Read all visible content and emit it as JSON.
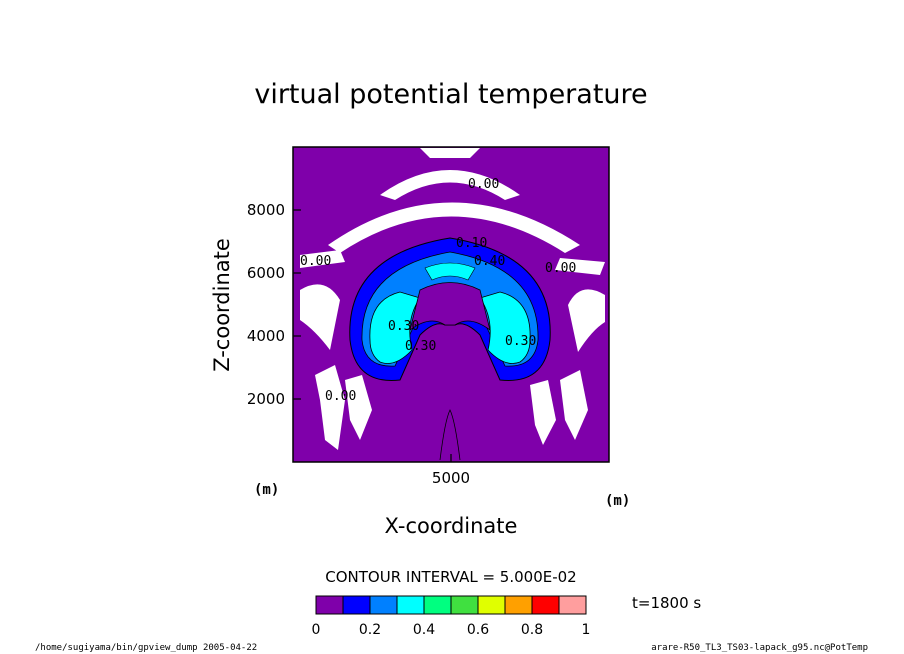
{
  "chart_data": {
    "type": "heatmap",
    "title": "virtual potential temperature",
    "xlabel": "X-coordinate",
    "ylabel": "Z-coordinate",
    "x_unit": "(m)",
    "y_unit": "(m)",
    "x_ticks": [
      5000
    ],
    "y_ticks": [
      2000,
      4000,
      6000,
      8000
    ],
    "xlim": [
      0,
      10000
    ],
    "ylim": [
      0,
      10000
    ],
    "contour_interval": "CONTOUR INTERVAL = 5.000E-02",
    "time_label": "t=1800 s",
    "colorbar": {
      "ticks": [
        "0",
        "0.2",
        "0.4",
        "0.6",
        "0.8",
        "1"
      ],
      "colors": [
        "#7f00aa",
        "#0000ff",
        "#0080ff",
        "#00ffff",
        "#00ff80",
        "#40e040",
        "#e0ff00",
        "#ffa000",
        "#ff0000",
        "#ff9e9e"
      ]
    },
    "contour_labels": [
      "0.00",
      "0.00",
      "0.00",
      "0.00",
      "0.10",
      "0.40",
      "0.30",
      "0.30",
      "0.30"
    ],
    "background_color": "#7f00aa"
  },
  "footer": {
    "left": "/home/sugiyama/bin/gpview_dump  2005-04-22",
    "right": "arare-R50_TL3_TS03-lapack_g95.nc@PotTemp"
  }
}
